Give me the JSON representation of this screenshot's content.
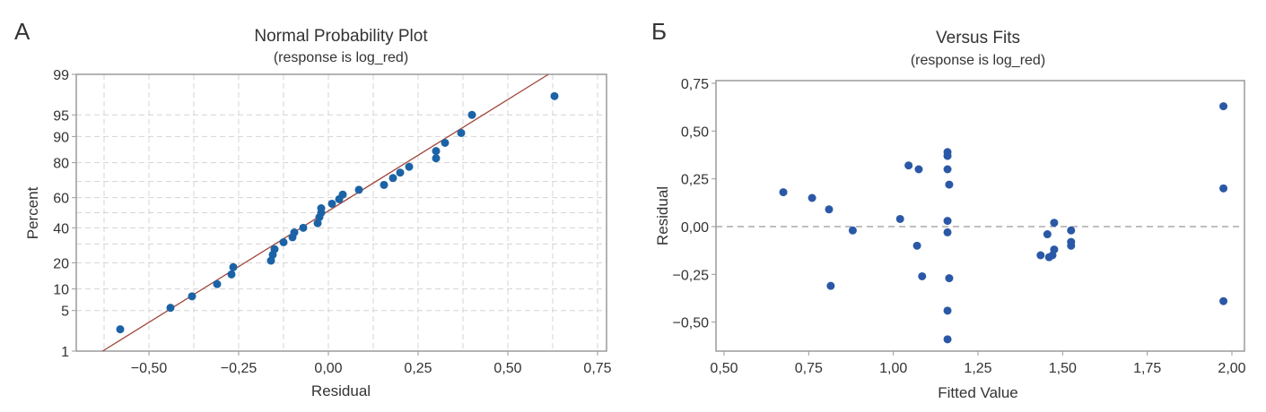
{
  "colors": {
    "point_left": "#1b63a6",
    "point_right": "#2b58a6",
    "fit_line": "#a04538",
    "grid": "#d4d4d4",
    "frame": "#9a9a9a",
    "zero_line": "#aaaaaa"
  },
  "chart_data": [
    {
      "panel_label": "А",
      "type": "scatter",
      "title": "Normal Probability Plot",
      "subtitle": "(response is log_red)",
      "xlabel": "Residual",
      "ylabel": "Percent",
      "xlim": [
        -0.7,
        0.78
      ],
      "ylim": [
        1,
        99
      ],
      "y_scale": "normal-probability",
      "grid": true,
      "x_ticks": [
        -0.5,
        -0.25,
        0,
        0.25,
        0.5,
        0.75
      ],
      "x_tick_labels": [
        "−0,50",
        "−0,25",
        "0,00",
        "0,25",
        "0,50",
        "0,75"
      ],
      "y_ticks": [
        1,
        5,
        10,
        20,
        40,
        60,
        80,
        90,
        95,
        99
      ],
      "y_tick_labels": [
        "1",
        "5",
        "10",
        "20",
        "40",
        "60",
        "80",
        "90",
        "95",
        "99"
      ],
      "fit_line": {
        "mean": -0.008,
        "sd": 0.267
      },
      "points": [
        [
          -0.58,
          2.5
        ],
        [
          -0.44,
          5.5
        ],
        [
          -0.38,
          8
        ],
        [
          -0.31,
          11.5
        ],
        [
          -0.27,
          15
        ],
        [
          -0.265,
          18
        ],
        [
          -0.16,
          21
        ],
        [
          -0.155,
          24
        ],
        [
          -0.15,
          27
        ],
        [
          -0.125,
          31
        ],
        [
          -0.1,
          34
        ],
        [
          -0.095,
          37
        ],
        [
          -0.07,
          40
        ],
        [
          -0.03,
          43
        ],
        [
          -0.025,
          47
        ],
        [
          -0.02,
          50
        ],
        [
          -0.02,
          53
        ],
        [
          0.01,
          56
        ],
        [
          0.03,
          59
        ],
        [
          0.04,
          62
        ],
        [
          0.085,
          65
        ],
        [
          0.155,
          68
        ],
        [
          0.18,
          72
        ],
        [
          0.2,
          75
        ],
        [
          0.225,
          78
        ],
        [
          0.3,
          82
        ],
        [
          0.3,
          85
        ],
        [
          0.325,
          88
        ],
        [
          0.37,
          91
        ],
        [
          0.4,
          95
        ],
        [
          0.63,
          97.5
        ]
      ]
    },
    {
      "panel_label": "Б",
      "type": "scatter",
      "title": "Versus Fits",
      "subtitle": "(response is log_red)",
      "xlabel": "Fitted Value",
      "ylabel": "Residual",
      "xlim": [
        0.48,
        2.1
      ],
      "ylim": [
        -0.66,
        0.76
      ],
      "grid": false,
      "reference_line_y": 0,
      "x_ticks": [
        0.5,
        0.75,
        1.0,
        1.25,
        1.5,
        1.75,
        2.0
      ],
      "x_tick_labels": [
        "0,50",
        "0,75",
        "1,00",
        "1,25",
        "1,50",
        "1,75",
        "2,00"
      ],
      "y_ticks": [
        -0.5,
        -0.25,
        0,
        0.25,
        0.5,
        0.75
      ],
      "y_tick_labels": [
        "−0,50",
        "−0,25",
        "0,00",
        "0,25",
        "0,50",
        "0,75"
      ],
      "points": [
        [
          0.675,
          0.18
        ],
        [
          0.76,
          0.15
        ],
        [
          0.81,
          0.09
        ],
        [
          0.88,
          -0.02
        ],
        [
          0.815,
          -0.31
        ],
        [
          1.02,
          0.04
        ],
        [
          1.045,
          0.32
        ],
        [
          1.075,
          0.3
        ],
        [
          1.07,
          -0.1
        ],
        [
          1.085,
          -0.26
        ],
        [
          1.16,
          0.39
        ],
        [
          1.16,
          0.37
        ],
        [
          1.16,
          0.3
        ],
        [
          1.165,
          0.22
        ],
        [
          1.16,
          0.03
        ],
        [
          1.16,
          -0.03
        ],
        [
          1.165,
          -0.27
        ],
        [
          1.16,
          -0.44
        ],
        [
          1.16,
          -0.59
        ],
        [
          1.435,
          -0.15
        ],
        [
          1.455,
          -0.04
        ],
        [
          1.46,
          -0.16
        ],
        [
          1.47,
          -0.15
        ],
        [
          1.475,
          0.02
        ],
        [
          1.475,
          -0.12
        ],
        [
          1.525,
          -0.02
        ],
        [
          1.525,
          -0.08
        ],
        [
          1.525,
          -0.1
        ],
        [
          1.975,
          0.63
        ],
        [
          1.975,
          0.2
        ],
        [
          1.975,
          -0.39
        ]
      ]
    }
  ]
}
